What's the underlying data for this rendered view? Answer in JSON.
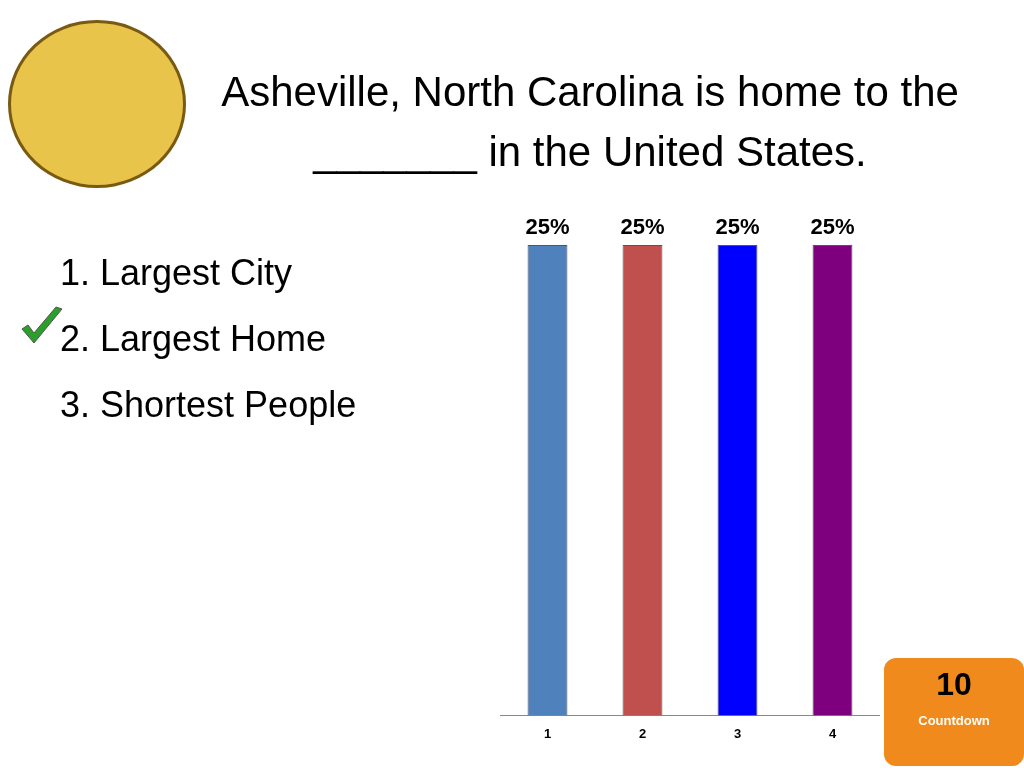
{
  "chart_data": {
    "type": "bar",
    "title": "Asheville, North Carolina is home to the _______ in the United States.",
    "categories": [
      "1",
      "2",
      "3",
      "4"
    ],
    "values": [
      25,
      25,
      25,
      25
    ],
    "colors": [
      "#4f81bd",
      "#c0504d",
      "#0000ff",
      "#7f007f"
    ],
    "value_labels": [
      "25%",
      "25%",
      "25%",
      "25%"
    ],
    "legend": false,
    "annotations": [
      "1.  Largest City",
      "2.  Largest Home",
      "3.  Shortest People",
      "10",
      "Countdown"
    ]
  }
}
